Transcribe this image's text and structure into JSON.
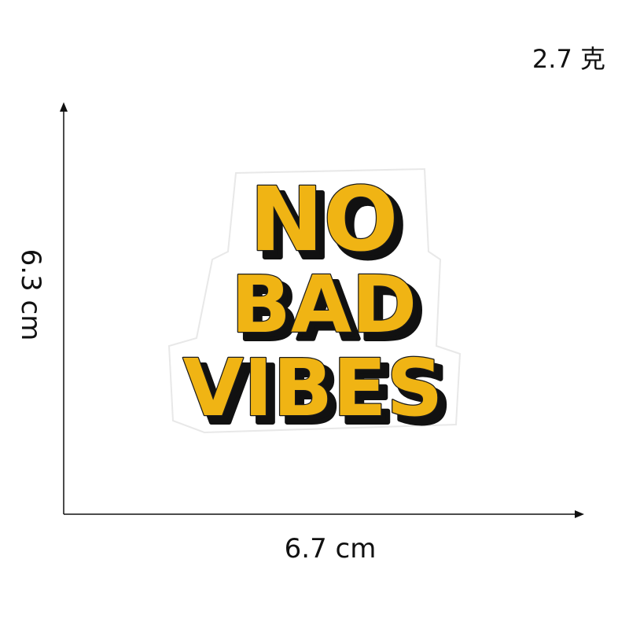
{
  "weight": {
    "value": "2.7 克"
  },
  "dimensions": {
    "width": "6.7 cm",
    "height": "6.3 cm"
  },
  "patch": {
    "lines": [
      "NO",
      "BAD",
      "VIBES"
    ],
    "colors": {
      "fill": "#f0b414",
      "shadow": "#111111",
      "outline": "#1a1a1a",
      "backing": "#ffffff"
    }
  }
}
